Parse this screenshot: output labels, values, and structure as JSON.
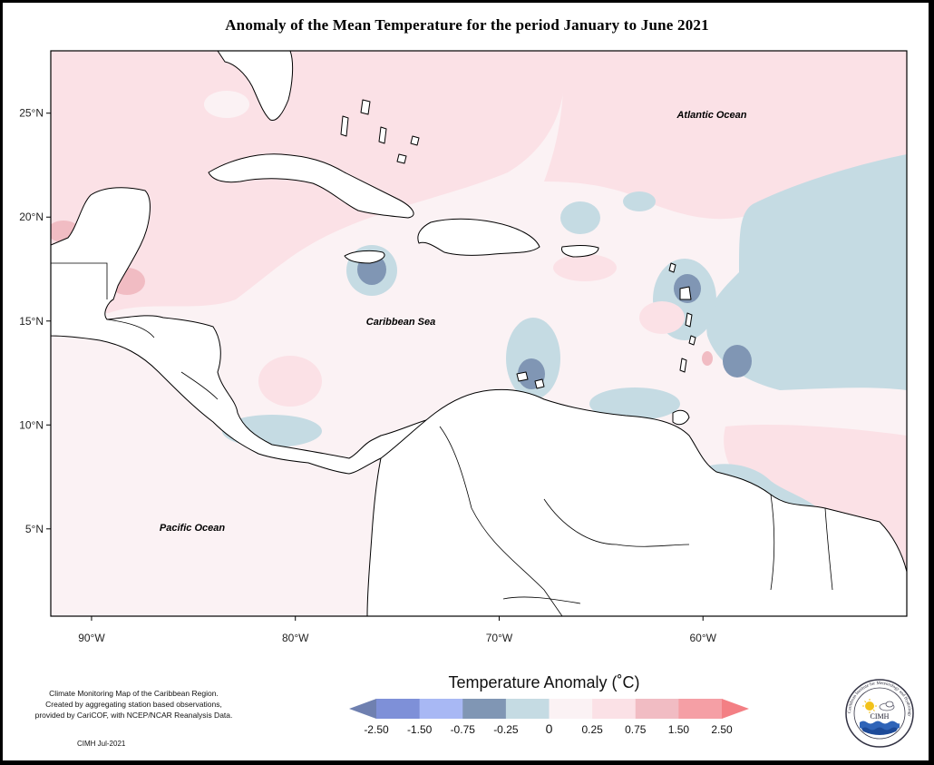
{
  "title": "Anomaly of the Mean Temperature for the period January to June 2021",
  "map": {
    "lat_ticks": [
      {
        "lat": 25,
        "label": "25°N"
      },
      {
        "lat": 20,
        "label": "20°N"
      },
      {
        "lat": 15,
        "label": "15°N"
      },
      {
        "lat": 10,
        "label": "10°N"
      },
      {
        "lat": 5,
        "label": "5°N"
      }
    ],
    "lon_ticks": [
      {
        "lon": -90,
        "label": "90°W"
      },
      {
        "lon": -80,
        "label": "80°W"
      },
      {
        "lon": -70,
        "label": "70°W"
      },
      {
        "lon": -60,
        "label": "60°W"
      }
    ],
    "extent": {
      "lon_min": -92,
      "lon_max": -50,
      "lat_min": 0.8,
      "lat_max": 28
    },
    "labels": {
      "atlantic": "Atlantic Ocean",
      "caribbean": "Caribbean Sea",
      "pacific": "Pacific Ocean"
    }
  },
  "legend": {
    "title": "Temperature Anomaly (˚C)",
    "unit": "°C",
    "bins": [
      {
        "color": "#6f80b0"
      },
      {
        "color": "#7e90d8"
      },
      {
        "color": "#a8b8f4"
      },
      {
        "color": "#8096b4"
      },
      {
        "color": "#c5dbe3"
      },
      {
        "color": "#fbf2f4"
      },
      {
        "color": "#fbe1e6"
      },
      {
        "color": "#f1bcc3"
      },
      {
        "color": "#f59fa5"
      },
      {
        "color": "#f37f84"
      }
    ],
    "tick_labels": [
      "-2.50",
      "-1.50",
      "-0.75",
      "-0.25",
      "0",
      "0.25",
      "0.75",
      "1.50",
      "2.50"
    ]
  },
  "credit": {
    "lines": [
      "Climate Monitoring Map of the Caribbean Region.",
      "Created by aggregating station based observations,",
      "provided by CariCOF, with NCEP/NCAR Reanalysis Data."
    ],
    "date": "CIMH Jul-2021"
  },
  "logo": {
    "text": "CIMH",
    "ring_text": "Caribbean Institute for Meteorology and Hydrology",
    "icons": [
      "sun-icon",
      "cloud-icon",
      "waves-icon"
    ]
  }
}
